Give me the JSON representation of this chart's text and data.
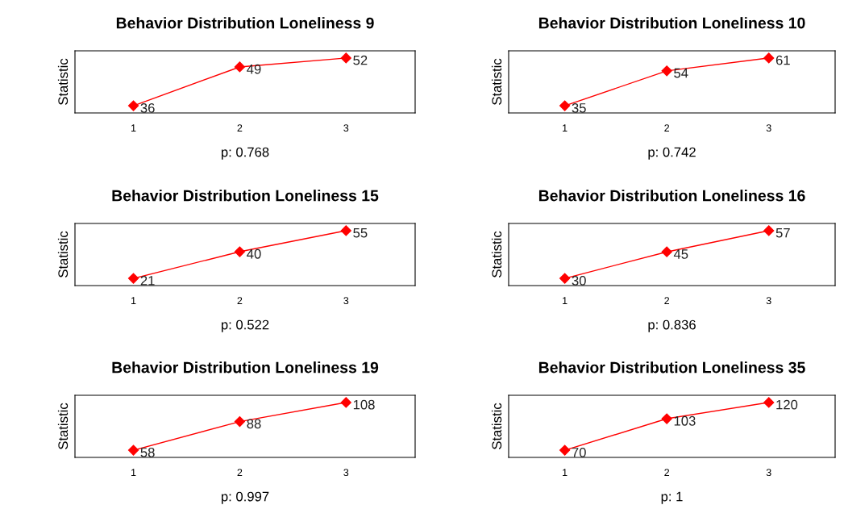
{
  "chart_data": [
    {
      "type": "line",
      "title": "Behavior Distribution Loneliness 9",
      "xlabel": "p: 0.768",
      "ylabel": "Statistic",
      "categories": [
        "1",
        "2",
        "3"
      ],
      "series": [
        {
          "color": "#ff0000",
          "values": [
            36,
            49,
            52
          ]
        }
      ],
      "marker": "diamond",
      "data_labels": true,
      "tick_labels": "x",
      "grid": false,
      "legend": false
    },
    {
      "type": "line",
      "title": "Behavior Distribution Loneliness 10",
      "xlabel": "p: 0.742",
      "ylabel": "Statistic",
      "categories": [
        "1",
        "2",
        "3"
      ],
      "series": [
        {
          "color": "#ff0000",
          "values": [
            35,
            54,
            61
          ]
        }
      ],
      "marker": "diamond",
      "data_labels": true,
      "tick_labels": "x",
      "grid": false,
      "legend": false
    },
    {
      "type": "line",
      "title": "Behavior Distribution Loneliness 15",
      "xlabel": "p: 0.522",
      "ylabel": "Statistic",
      "categories": [
        "1",
        "2",
        "3"
      ],
      "series": [
        {
          "color": "#ff0000",
          "values": [
            21,
            40,
            55
          ]
        }
      ],
      "marker": "diamond",
      "data_labels": true,
      "tick_labels": "x",
      "grid": false,
      "legend": false
    },
    {
      "type": "line",
      "title": "Behavior Distribution Loneliness 16",
      "xlabel": "p: 0.836",
      "ylabel": "Statistic",
      "categories": [
        "1",
        "2",
        "3"
      ],
      "series": [
        {
          "color": "#ff0000",
          "values": [
            30,
            45,
            57
          ]
        }
      ],
      "marker": "diamond",
      "data_labels": true,
      "tick_labels": "x",
      "grid": false,
      "legend": false
    },
    {
      "type": "line",
      "title": "Behavior Distribution Loneliness 19",
      "xlabel": "p: 0.997",
      "ylabel": "Statistic",
      "categories": [
        "1",
        "2",
        "3"
      ],
      "series": [
        {
          "color": "#ff0000",
          "values": [
            58,
            88,
            108
          ]
        }
      ],
      "marker": "diamond",
      "data_labels": true,
      "tick_labels": "x",
      "grid": false,
      "legend": false
    },
    {
      "type": "line",
      "title": "Behavior Distribution Loneliness 35",
      "xlabel": "p: 1",
      "ylabel": "Statistic",
      "categories": [
        "1",
        "2",
        "3"
      ],
      "series": [
        {
          "color": "#ff0000",
          "values": [
            70,
            103,
            120
          ]
        }
      ],
      "marker": "diamond",
      "data_labels": true,
      "tick_labels": "x",
      "grid": false,
      "legend": false
    }
  ]
}
